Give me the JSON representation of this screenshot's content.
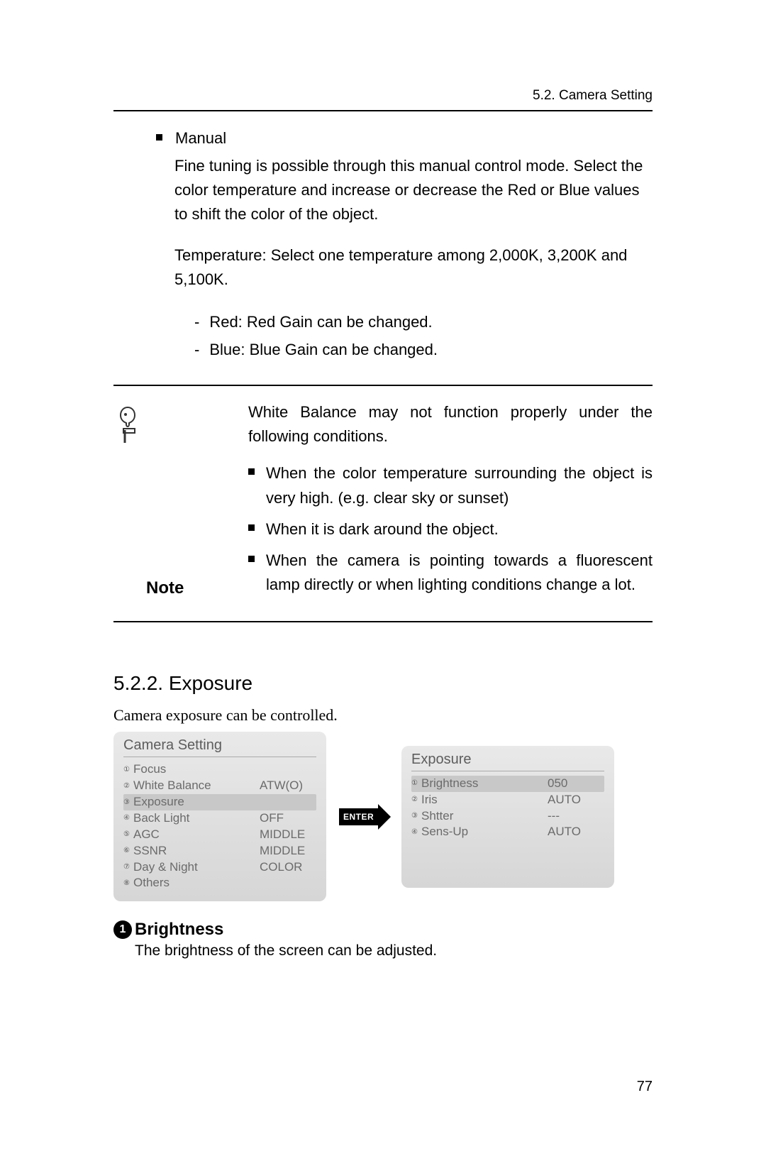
{
  "header": {
    "section": "5.2. Camera Setting"
  },
  "manual": {
    "title": "Manual",
    "body": "Fine tuning is possible through this manual control mode. Select the color temperature and increase or decrease the Red or Blue values to shift the color of the object.",
    "temp": "Temperature: Select one temperature among 2,000K, 3,200K and 5,100K.",
    "dash": [
      "Red: Red Gain can be changed.",
      "Blue: Blue Gain can be changed."
    ]
  },
  "note": {
    "label": "Note",
    "intro": "White Balance may not function properly under the following conditions.",
    "items": [
      "When the color temperature surrounding the object is very high. (e.g. clear sky or sunset)",
      "When it is dark around the object.",
      "When the camera is pointing towards a fluorescent lamp directly or when lighting conditions change a lot."
    ]
  },
  "exposure": {
    "heading": "5.2.2. Exposure",
    "intro": "Camera exposure can be controlled."
  },
  "menu_left": {
    "title": "Camera Setting",
    "rows": [
      {
        "n": "①",
        "label": "Focus",
        "val": ""
      },
      {
        "n": "②",
        "label": "White Balance",
        "val": "ATW(O)"
      },
      {
        "n": "③",
        "label": "Exposure",
        "val": "",
        "selected": true
      },
      {
        "n": "④",
        "label": "Back Light",
        "val": "OFF"
      },
      {
        "n": "⑤",
        "label": "AGC",
        "val": "MIDDLE"
      },
      {
        "n": "⑥",
        "label": "SSNR",
        "val": "MIDDLE"
      },
      {
        "n": "⑦",
        "label": "Day & Night",
        "val": "COLOR"
      },
      {
        "n": "⑧",
        "label": "Others",
        "val": ""
      }
    ]
  },
  "enter_label": "ENTER",
  "menu_right": {
    "title": "Exposure",
    "rows": [
      {
        "n": "①",
        "label": "Brightness",
        "val": "050",
        "selected": true
      },
      {
        "n": "②",
        "label": "Iris",
        "val": "AUTO"
      },
      {
        "n": "③",
        "label": "Shtter",
        "val": "---"
      },
      {
        "n": "④",
        "label": "Sens-Up",
        "val": "AUTO"
      }
    ]
  },
  "brightness": {
    "num": "1",
    "title": "Brightness",
    "body": "The brightness of the screen can be adjusted."
  },
  "page_number": "77"
}
